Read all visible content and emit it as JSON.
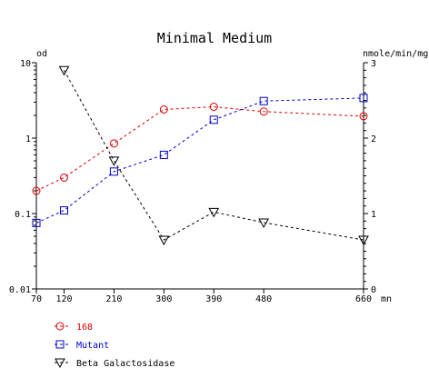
{
  "chart_data": {
    "type": "line",
    "title": "Minimal Medium",
    "y_left_label": "od",
    "y_right_label": "nmole/min/mg",
    "x_unit_label": "mn",
    "x": [
      70,
      120,
      210,
      300,
      390,
      480,
      660
    ],
    "x_tick_labels": [
      "70",
      "120",
      "210",
      "300",
      "390",
      "480",
      "660"
    ],
    "y_left_scale": "log",
    "y_left_range": [
      0.01,
      10
    ],
    "y_left_tick_labels": [
      "0.01",
      "0.1",
      "1",
      "10"
    ],
    "y_right_range": [
      0,
      3
    ],
    "y_right_tick_labels": [
      "0",
      "1",
      "2",
      "3"
    ],
    "grid": false,
    "legend_position": "bottom-left",
    "series": [
      {
        "name": "168",
        "axis": "left",
        "color": "#dd0000",
        "marker": "circle",
        "x": [
          70,
          120,
          210,
          300,
          390,
          480,
          660
        ],
        "values": [
          0.2,
          0.3,
          0.85,
          2.4,
          2.6,
          2.25,
          1.95
        ]
      },
      {
        "name": "Mutant",
        "axis": "left",
        "color": "#0000cc",
        "marker": "square",
        "x": [
          70,
          120,
          210,
          300,
          390,
          480,
          660
        ],
        "values": [
          0.075,
          0.11,
          0.36,
          0.6,
          1.75,
          3.1,
          3.4
        ]
      },
      {
        "name": "Beta Galactosidase",
        "axis": "right",
        "color": "#000000",
        "marker": "triangle-down",
        "x": [
          120,
          210,
          300,
          390,
          480,
          660
        ],
        "values": [
          2.9,
          1.7,
          0.65,
          1.02,
          0.88,
          0.65
        ]
      }
    ]
  }
}
